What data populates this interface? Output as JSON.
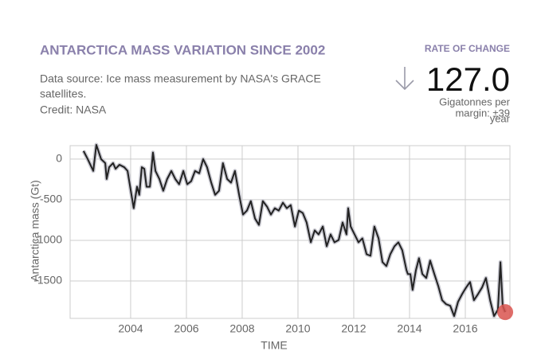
{
  "chart_data": {
    "type": "line",
    "title": "ANTARCTICA MASS VARIATION SINCE 2002",
    "subtitle_lines": [
      "Data source: Ice mass measurement by NASA's GRACE",
      "satellites.",
      "Credit: NASA"
    ],
    "rate_label": "RATE OF CHANGE",
    "rate_value": "127.0",
    "rate_units_lines": [
      "Gigatonnes per",
      "year"
    ],
    "rate_margin": "margin: ±39",
    "y_label": "Antarctica mass (Gt)",
    "x_label": "TIME",
    "xlim": [
      2001.83,
      2017.6
    ],
    "ylim": [
      -1960,
      165
    ],
    "xticks": [
      2004,
      2006,
      2008,
      2010,
      2012,
      2014,
      2016
    ],
    "yticks": [
      0,
      -500,
      -1000,
      -1500
    ],
    "grid": true,
    "x": [
      2002.31,
      2002.46,
      2002.66,
      2002.77,
      2002.94,
      2003.09,
      2003.14,
      2003.23,
      2003.37,
      2003.46,
      2003.6,
      2003.77,
      2003.89,
      2004.03,
      2004.11,
      2004.23,
      2004.31,
      2004.4,
      2004.49,
      2004.57,
      2004.69,
      2004.8,
      2004.89,
      2005.03,
      2005.17,
      2005.31,
      2005.46,
      2005.6,
      2005.74,
      2005.89,
      2006.03,
      2006.17,
      2006.31,
      2006.46,
      2006.6,
      2006.74,
      2006.89,
      2007.03,
      2007.17,
      2007.31,
      2007.46,
      2007.6,
      2007.74,
      2007.89,
      2008.03,
      2008.17,
      2008.31,
      2008.46,
      2008.6,
      2008.74,
      2008.89,
      2009.03,
      2009.17,
      2009.31,
      2009.46,
      2009.6,
      2009.74,
      2009.89,
      2010.03,
      2010.17,
      2010.31,
      2010.46,
      2010.6,
      2010.74,
      2010.89,
      2011.03,
      2011.17,
      2011.31,
      2011.46,
      2011.6,
      2011.74,
      2011.8,
      2011.89,
      2012.03,
      2012.17,
      2012.31,
      2012.46,
      2012.6,
      2012.74,
      2012.89,
      2013.03,
      2013.17,
      2013.31,
      2013.46,
      2013.6,
      2013.74,
      2013.89,
      2013.94,
      2014.03,
      2014.11,
      2014.23,
      2014.34,
      2014.46,
      2014.6,
      2014.74,
      2014.89,
      2015.03,
      2015.17,
      2015.31,
      2015.46,
      2015.6,
      2015.74,
      2015.89,
      2016.03,
      2016.17,
      2016.31,
      2016.46,
      2016.6,
      2016.74,
      2016.89,
      2017.03,
      2017.17,
      2017.26,
      2017.34,
      2017.43
    ],
    "series": [
      {
        "color": "#222222",
        "band_color": "#c8c8d0",
        "marker_color": "#d9534f",
        "values": [
          100,
          0,
          -146,
          175,
          0,
          -50,
          -245,
          -100,
          -50,
          -120,
          -70,
          -100,
          -146,
          -440,
          -605,
          -340,
          -440,
          -100,
          -120,
          -340,
          -340,
          80,
          -146,
          -245,
          -390,
          -245,
          -146,
          -245,
          -310,
          -146,
          -310,
          -273,
          -146,
          -175,
          0,
          -100,
          -290,
          -440,
          -390,
          -50,
          -245,
          -290,
          -146,
          -440,
          -683,
          -634,
          -517,
          -732,
          -810,
          -517,
          -585,
          -683,
          -605,
          -634,
          -537,
          -605,
          -566,
          -830,
          -634,
          -663,
          -780,
          -1024,
          -878,
          -927,
          -830,
          -1073,
          -927,
          -1024,
          -995,
          -780,
          -927,
          -605,
          -830,
          -927,
          -1024,
          -976,
          -1171,
          -1190,
          -830,
          -976,
          -1268,
          -1317,
          -1171,
          -1073,
          -1024,
          -1122,
          -1366,
          -1415,
          -1415,
          -1610,
          -1366,
          -1220,
          -1415,
          -1463,
          -1249,
          -1415,
          -1561,
          -1737,
          -1785,
          -1805,
          -1932,
          -1756,
          -1659,
          -1580,
          -1512,
          -1737,
          -1659,
          -1580,
          -1463,
          -1737,
          -1932,
          -1854,
          -1268,
          -1805,
          -1883
        ]
      }
    ]
  }
}
